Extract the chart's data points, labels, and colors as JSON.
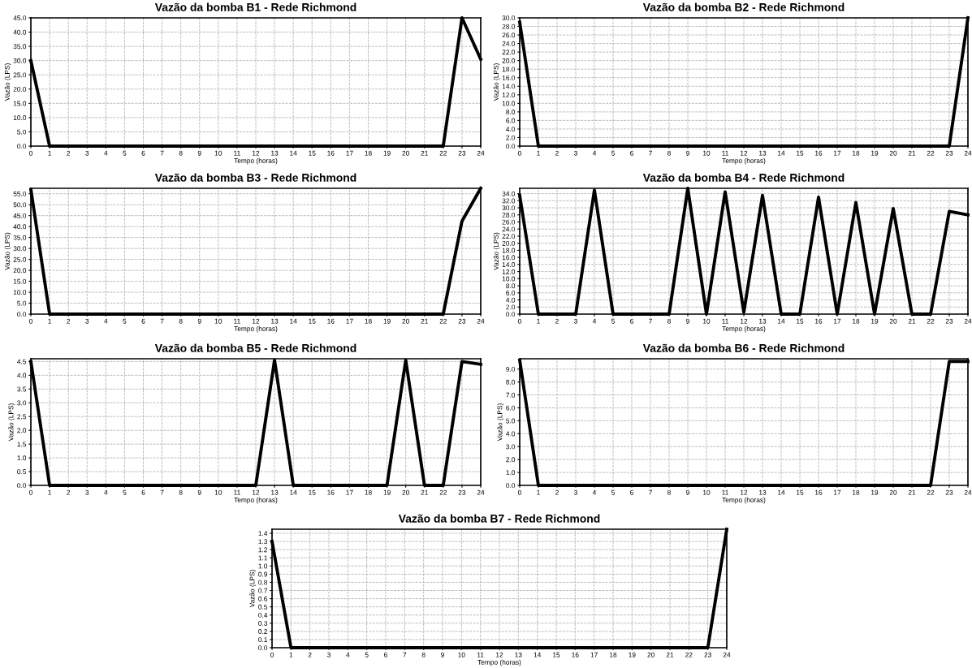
{
  "chart_data": [
    {
      "type": "line",
      "title": "Vazão da bomba B1 - Rede Richmond",
      "xlabel": "Tempo (horas)",
      "ylabel": "Vazão (LPS)",
      "x": [
        0,
        1,
        2,
        3,
        4,
        5,
        6,
        7,
        8,
        9,
        10,
        11,
        12,
        13,
        14,
        15,
        16,
        17,
        18,
        19,
        20,
        21,
        22,
        23,
        24
      ],
      "xlim": [
        0,
        24
      ],
      "xticks": [
        0,
        1,
        2,
        3,
        4,
        5,
        6,
        7,
        8,
        9,
        10,
        11,
        12,
        13,
        14,
        15,
        16,
        17,
        18,
        19,
        20,
        21,
        22,
        23,
        24
      ],
      "ylim": [
        0,
        45
      ],
      "yticks": [
        {
          "value": 0,
          "label": "0.0"
        },
        {
          "value": 5,
          "label": "5.0"
        },
        {
          "value": 10,
          "label": "10.0"
        },
        {
          "value": 15,
          "label": "15.0"
        },
        {
          "value": 20,
          "label": "20.0"
        },
        {
          "value": 25,
          "label": "25.0"
        },
        {
          "value": 30,
          "label": "30.0"
        },
        {
          "value": 35,
          "label": "35.0"
        },
        {
          "value": 40,
          "label": "40.0"
        },
        {
          "value": 45,
          "label": "45.0"
        }
      ],
      "grid": true,
      "line_style": "solid",
      "series": [
        {
          "color": "#000000",
          "values": [
            30,
            0,
            0,
            0,
            0,
            0,
            0,
            0,
            0,
            0,
            0,
            0,
            0,
            0,
            0,
            0,
            0,
            0,
            0,
            0,
            0,
            0,
            0,
            45,
            30.5
          ]
        }
      ]
    },
    {
      "type": "line",
      "title": "Vazão da bomba B2 - Rede Richmond",
      "xlabel": "Tempo (horas)",
      "ylabel": "Vazão (LPS)",
      "x": [
        0,
        1,
        2,
        3,
        4,
        5,
        6,
        7,
        8,
        9,
        10,
        11,
        12,
        13,
        14,
        15,
        16,
        17,
        18,
        19,
        20,
        21,
        22,
        23,
        24
      ],
      "xlim": [
        0,
        24
      ],
      "xticks": [
        0,
        1,
        2,
        3,
        4,
        5,
        6,
        7,
        8,
        9,
        10,
        11,
        12,
        13,
        14,
        15,
        16,
        17,
        18,
        19,
        20,
        21,
        22,
        23,
        24
      ],
      "ylim": [
        0,
        30
      ],
      "yticks": [
        {
          "value": 0,
          "label": "0.0"
        },
        {
          "value": 2,
          "label": "2.0"
        },
        {
          "value": 4,
          "label": "4.0"
        },
        {
          "value": 6,
          "label": "6.0"
        },
        {
          "value": 8,
          "label": "8.0"
        },
        {
          "value": 10,
          "label": "10.0"
        },
        {
          "value": 12,
          "label": "12.0"
        },
        {
          "value": 14,
          "label": "14.0"
        },
        {
          "value": 16,
          "label": "16.0"
        },
        {
          "value": 18,
          "label": "18.0"
        },
        {
          "value": 20,
          "label": "20.0"
        },
        {
          "value": 22,
          "label": "22.0"
        },
        {
          "value": 24,
          "label": "24.0"
        },
        {
          "value": 26,
          "label": "26.0"
        },
        {
          "value": 28,
          "label": "28.0"
        },
        {
          "value": 30,
          "label": "30.0"
        }
      ],
      "grid": true,
      "line_style": "solid",
      "series": [
        {
          "color": "#000000",
          "values": [
            29,
            0,
            0,
            0,
            0,
            0,
            0,
            0,
            0,
            0,
            0,
            0,
            0,
            0,
            0,
            0,
            0,
            0,
            0,
            0,
            0,
            0,
            0,
            0,
            30
          ]
        }
      ]
    },
    {
      "type": "line",
      "title": "Vazão da bomba B3 - Rede Richmond",
      "xlabel": "Tempo (horas)",
      "ylabel": "Vazão (LPS)",
      "x": [
        0,
        1,
        2,
        3,
        4,
        5,
        6,
        7,
        8,
        9,
        10,
        11,
        12,
        13,
        14,
        15,
        16,
        17,
        18,
        19,
        20,
        21,
        22,
        23,
        24
      ],
      "xlim": [
        0,
        24
      ],
      "xticks": [
        0,
        1,
        2,
        3,
        4,
        5,
        6,
        7,
        8,
        9,
        10,
        11,
        12,
        13,
        14,
        15,
        16,
        17,
        18,
        19,
        20,
        21,
        22,
        23,
        24
      ],
      "ylim": [
        0,
        57.5
      ],
      "yticks": [
        {
          "value": 0,
          "label": "0.0"
        },
        {
          "value": 5,
          "label": "5.0"
        },
        {
          "value": 10,
          "label": "10.0"
        },
        {
          "value": 15,
          "label": "15.0"
        },
        {
          "value": 20,
          "label": "20.0"
        },
        {
          "value": 25,
          "label": "25.0"
        },
        {
          "value": 30,
          "label": "30.0"
        },
        {
          "value": 35,
          "label": "35.0"
        },
        {
          "value": 40,
          "label": "40.0"
        },
        {
          "value": 45,
          "label": "45.0"
        },
        {
          "value": 50,
          "label": "50.0"
        },
        {
          "value": 55,
          "label": "55.0"
        }
      ],
      "grid": true,
      "line_style": "solid",
      "series": [
        {
          "color": "#000000",
          "values": [
            57,
            0,
            0,
            0,
            0,
            0,
            0,
            0,
            0,
            0,
            0,
            0,
            0,
            0,
            0,
            0,
            0,
            0,
            0,
            0,
            0,
            0,
            0,
            42.5,
            57.5
          ]
        }
      ]
    },
    {
      "type": "line",
      "title": "Vazão da bomba B4 - Rede Richmond",
      "xlabel": "Tempo (horas)",
      "ylabel": "Vazão (LPS)",
      "x": [
        0,
        1,
        2,
        3,
        4,
        5,
        6,
        7,
        8,
        9,
        10,
        11,
        12,
        13,
        14,
        15,
        16,
        17,
        18,
        19,
        20,
        21,
        22,
        23,
        24
      ],
      "xlim": [
        0,
        24
      ],
      "xticks": [
        0,
        1,
        2,
        3,
        4,
        5,
        6,
        7,
        8,
        9,
        10,
        11,
        12,
        13,
        14,
        15,
        16,
        17,
        18,
        19,
        20,
        21,
        22,
        23,
        24
      ],
      "ylim": [
        0,
        35.5
      ],
      "yticks": [
        {
          "value": 0,
          "label": "0.0"
        },
        {
          "value": 2,
          "label": "2.0"
        },
        {
          "value": 4,
          "label": "4.0"
        },
        {
          "value": 6,
          "label": "6.0"
        },
        {
          "value": 8,
          "label": "8.0"
        },
        {
          "value": 10,
          "label": "10.0"
        },
        {
          "value": 12,
          "label": "12.0"
        },
        {
          "value": 14,
          "label": "14.0"
        },
        {
          "value": 16,
          "label": "16.0"
        },
        {
          "value": 18,
          "label": "18.0"
        },
        {
          "value": 20,
          "label": "20.0"
        },
        {
          "value": 22,
          "label": "22.0"
        },
        {
          "value": 24,
          "label": "24.0"
        },
        {
          "value": 26,
          "label": "26.0"
        },
        {
          "value": 28,
          "label": "28.0"
        },
        {
          "value": 30,
          "label": "30.0"
        },
        {
          "value": 32,
          "label": "32.0"
        },
        {
          "value": 34,
          "label": "34.0"
        }
      ],
      "grid": true,
      "line_style": "solid",
      "series": [
        {
          "color": "#000000",
          "values": [
            33.5,
            0,
            0,
            0,
            35,
            0,
            0,
            0,
            0,
            35.5,
            0,
            34.5,
            0.5,
            33.5,
            0,
            0,
            33,
            0,
            31.5,
            0,
            29.8,
            0,
            0,
            29,
            28
          ]
        }
      ]
    },
    {
      "type": "line",
      "title": "Vazão da bomba B5 - Rede Richmond",
      "xlabel": "Tempo (horas)",
      "ylabel": "Vazão (LPS)",
      "x": [
        0,
        1,
        2,
        3,
        4,
        5,
        6,
        7,
        8,
        9,
        10,
        11,
        12,
        13,
        14,
        15,
        16,
        17,
        18,
        19,
        20,
        21,
        22,
        23,
        24
      ],
      "xlim": [
        0,
        24
      ],
      "xticks": [
        0,
        1,
        2,
        3,
        4,
        5,
        6,
        7,
        8,
        9,
        10,
        11,
        12,
        13,
        14,
        15,
        16,
        17,
        18,
        19,
        20,
        21,
        22,
        23,
        24
      ],
      "ylim": [
        0,
        4.6
      ],
      "yticks": [
        {
          "value": 0,
          "label": "0.0"
        },
        {
          "value": 0.5,
          "label": "0.5"
        },
        {
          "value": 1,
          "label": "1.0"
        },
        {
          "value": 1.5,
          "label": "1.5"
        },
        {
          "value": 2,
          "label": "2.0"
        },
        {
          "value": 2.5,
          "label": "2.5"
        },
        {
          "value": 3,
          "label": "3.0"
        },
        {
          "value": 3.5,
          "label": "3.5"
        },
        {
          "value": 4,
          "label": "4.0"
        },
        {
          "value": 4.5,
          "label": "4.5"
        }
      ],
      "grid": true,
      "line_style": "solid",
      "series": [
        {
          "color": "#000000",
          "values": [
            4.5,
            0,
            0,
            0,
            0,
            0,
            0,
            0,
            0,
            0,
            0,
            0,
            0,
            4.55,
            0,
            0,
            0,
            0,
            0,
            0,
            4.55,
            0,
            0,
            4.5,
            4.4
          ]
        }
      ]
    },
    {
      "type": "line",
      "title": "Vazão da bomba B6 - Rede Richmond",
      "xlabel": "Tempo (horas)",
      "ylabel": "Vazão (LPS)",
      "x": [
        0,
        1,
        2,
        3,
        4,
        5,
        6,
        7,
        8,
        9,
        10,
        11,
        12,
        13,
        14,
        15,
        16,
        17,
        18,
        19,
        20,
        21,
        22,
        23,
        24
      ],
      "xlim": [
        0,
        24
      ],
      "xticks": [
        0,
        1,
        2,
        3,
        4,
        5,
        6,
        7,
        8,
        9,
        10,
        11,
        12,
        13,
        14,
        15,
        16,
        17,
        18,
        19,
        20,
        21,
        22,
        23,
        24
      ],
      "ylim": [
        0,
        9.8
      ],
      "yticks": [
        {
          "value": 0,
          "label": "0.0"
        },
        {
          "value": 1,
          "label": "1.0"
        },
        {
          "value": 2,
          "label": "2.0"
        },
        {
          "value": 3,
          "label": "3.0"
        },
        {
          "value": 4,
          "label": "4.0"
        },
        {
          "value": 5,
          "label": "5.0"
        },
        {
          "value": 6,
          "label": "6.0"
        },
        {
          "value": 7,
          "label": "7.0"
        },
        {
          "value": 8,
          "label": "8.0"
        },
        {
          "value": 9,
          "label": "9.0"
        }
      ],
      "grid": true,
      "line_style": "solid",
      "series": [
        {
          "color": "#000000",
          "values": [
            9.7,
            0,
            0,
            0,
            0,
            0,
            0,
            0,
            0,
            0,
            0,
            0,
            0,
            0,
            0,
            0,
            0,
            0,
            0,
            0,
            0,
            0,
            0,
            9.6,
            9.6
          ]
        }
      ]
    },
    {
      "type": "line",
      "title": "Vazão da bomba B7 - Rede Richmond",
      "xlabel": "Tempo (horas)",
      "ylabel": "Vazão (LPS)",
      "x": [
        0,
        1,
        2,
        3,
        4,
        5,
        6,
        7,
        8,
        9,
        10,
        11,
        12,
        13,
        14,
        15,
        16,
        17,
        18,
        19,
        20,
        21,
        22,
        23,
        24
      ],
      "xlim": [
        0,
        24
      ],
      "xticks": [
        0,
        1,
        2,
        3,
        4,
        5,
        6,
        7,
        8,
        9,
        10,
        11,
        12,
        13,
        14,
        15,
        16,
        17,
        18,
        19,
        20,
        21,
        22,
        23,
        24
      ],
      "ylim": [
        0,
        1.45
      ],
      "yticks": [
        {
          "value": 0,
          "label": "0.0"
        },
        {
          "value": 0.1,
          "label": "0.1"
        },
        {
          "value": 0.2,
          "label": "0.2"
        },
        {
          "value": 0.3,
          "label": "0.3"
        },
        {
          "value": 0.4,
          "label": "0.4"
        },
        {
          "value": 0.5,
          "label": "0.5"
        },
        {
          "value": 0.6,
          "label": "0.6"
        },
        {
          "value": 0.7,
          "label": "0.7"
        },
        {
          "value": 0.8,
          "label": "0.8"
        },
        {
          "value": 0.9,
          "label": "0.9"
        },
        {
          "value": 1,
          "label": "1.0"
        },
        {
          "value": 1.1,
          "label": "1.1"
        },
        {
          "value": 1.2,
          "label": "1.2"
        },
        {
          "value": 1.3,
          "label": "1.3"
        },
        {
          "value": 1.4,
          "label": "1.4"
        }
      ],
      "grid": true,
      "line_style": "solid",
      "series": [
        {
          "color": "#000000",
          "values": [
            1.3,
            0,
            0,
            0,
            0,
            0,
            0,
            0,
            0,
            0,
            0,
            0,
            0,
            0,
            0,
            0,
            0,
            0,
            0,
            0,
            0,
            0,
            0,
            0,
            1.45
          ]
        }
      ]
    }
  ]
}
